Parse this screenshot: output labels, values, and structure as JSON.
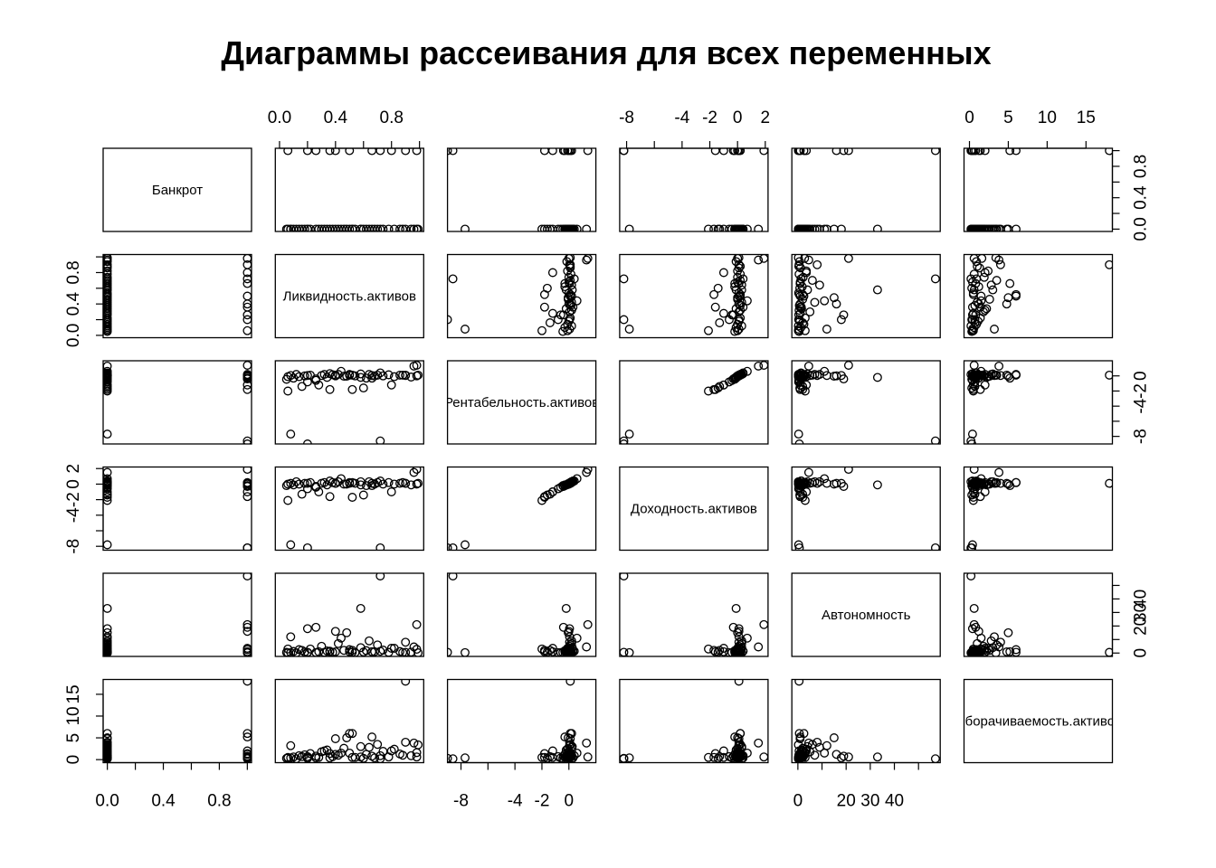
{
  "chart_data": {
    "type": "scatter",
    "title": "Диаграммы рассеивания для всех переменных",
    "variables": [
      {
        "name": "Банкрот",
        "range": [
          -0.03,
          1.03
        ],
        "ticks": [
          0.0,
          0.2,
          0.4,
          0.6,
          0.8,
          1.0
        ],
        "tick_labels": [
          "0.0",
          "",
          "0.4",
          "",
          "0.8",
          ""
        ]
      },
      {
        "name": "Ликвидность.активов",
        "range": [
          -0.03,
          1.03
        ],
        "ticks": [
          0.0,
          0.2,
          0.4,
          0.6,
          0.8,
          1.0
        ],
        "tick_labels": [
          "0.0",
          "",
          "0.4",
          "",
          "0.8",
          ""
        ]
      },
      {
        "name": "Рентабельность.активов",
        "range": [
          -9.0,
          2.0
        ],
        "ticks": [
          -8,
          -6,
          -4,
          -2,
          0
        ],
        "tick_labels": [
          "-8",
          "",
          "-4",
          "-2",
          "0"
        ]
      },
      {
        "name": "Доходность.активов",
        "range": [
          -8.5,
          2.2
        ],
        "ticks": [
          -8,
          -6,
          -4,
          -2,
          0,
          2
        ],
        "tick_labels": [
          "-8",
          "",
          "-4",
          "-2",
          "0",
          "2"
        ]
      },
      {
        "name": "Автономность",
        "range": [
          -2.5,
          59.0
        ],
        "ticks": [
          0,
          10,
          20,
          30,
          40,
          50
        ],
        "tick_labels": [
          "0",
          "",
          "20",
          "30",
          "40",
          ""
        ]
      },
      {
        "name": "Оборачиваемость.активов",
        "range": [
          -0.7,
          18.4
        ],
        "ticks": [
          0,
          5,
          10,
          15
        ],
        "tick_labels": [
          "0",
          "5",
          "10",
          "15"
        ]
      }
    ],
    "observations": [
      [
        0,
        0.05,
        -0.45,
        -0.2,
        0.5,
        0.3
      ],
      [
        0,
        0.1,
        -0.3,
        -0.1,
        1.2,
        0.6
      ],
      [
        0,
        0.14,
        -0.1,
        0.0,
        2.5,
        0.9
      ],
      [
        0,
        0.18,
        0.0,
        0.1,
        0.8,
        1.1
      ],
      [
        0,
        0.22,
        0.1,
        0.2,
        3.0,
        1.4
      ],
      [
        0,
        0.26,
        -0.6,
        -0.4,
        0.4,
        0.4
      ],
      [
        0,
        0.3,
        0.05,
        0.1,
        5.0,
        1.8
      ],
      [
        0,
        0.34,
        -0.2,
        -0.1,
        1.5,
        2.2
      ],
      [
        0,
        0.38,
        0.15,
        0.2,
        0.6,
        0.7
      ],
      [
        0,
        0.42,
        0.2,
        0.3,
        7.0,
        1.0
      ],
      [
        0,
        0.46,
        -0.05,
        0.0,
        2.0,
        2.6
      ],
      [
        0,
        0.5,
        0.1,
        0.1,
        1.0,
        1.5
      ],
      [
        0,
        0.54,
        0.0,
        0.1,
        0.3,
        0.5
      ],
      [
        0,
        0.58,
        0.25,
        0.3,
        4.0,
        3.0
      ],
      [
        0,
        0.62,
        -0.3,
        -0.2,
        1.8,
        1.2
      ],
      [
        0,
        0.66,
        0.05,
        0.1,
        0.9,
        0.8
      ],
      [
        0,
        0.7,
        0.1,
        0.2,
        6.0,
        3.5
      ],
      [
        0,
        0.74,
        0.0,
        0.0,
        2.2,
        1.9
      ],
      [
        0,
        0.78,
        0.15,
        0.2,
        0.5,
        0.6
      ],
      [
        0,
        0.82,
        -0.1,
        0.0,
        3.5,
        2.4
      ],
      [
        0,
        0.86,
        0.1,
        0.1,
        1.1,
        1.3
      ],
      [
        0,
        0.9,
        0.05,
        0.1,
        8.0,
        4.0
      ],
      [
        0,
        0.94,
        -0.15,
        -0.1,
        0.7,
        0.9
      ],
      [
        0,
        0.98,
        0.0,
        0.0,
        2.8,
        1.6
      ],
      [
        0,
        0.12,
        0.2,
        0.3,
        0.2,
        0.2
      ],
      [
        0,
        0.36,
        0.3,
        0.4,
        1.4,
        0.4
      ],
      [
        0,
        0.64,
        0.2,
        0.3,
        9.0,
        2.8
      ],
      [
        0,
        0.88,
        0.1,
        0.2,
        0.4,
        1.0
      ],
      [
        0,
        0.08,
        0.05,
        0.1,
        12.0,
        3.2
      ],
      [
        0,
        0.48,
        -0.05,
        0.0,
        15.0,
        5.0
      ],
      [
        0,
        0.2,
        -0.8,
        -0.6,
        0.3,
        0.7
      ],
      [
        0,
        0.28,
        -1.2,
        -1.0,
        1.0,
        0.5
      ],
      [
        0,
        0.6,
        -1.6,
        -1.4,
        0.8,
        0.3
      ],
      [
        0,
        0.2,
        0.05,
        0.1,
        18.0,
        0.4
      ],
      [
        0,
        0.4,
        0.1,
        0.1,
        0.9,
        4.8
      ],
      [
        0,
        0.52,
        0.1,
        0.2,
        0.6,
        6.0
      ],
      [
        0,
        0.06,
        -2.0,
        -2.1,
        3.0,
        0.5
      ],
      [
        0,
        0.16,
        -1.4,
        -1.3,
        2.0,
        0.7
      ],
      [
        0,
        0.44,
        0.6,
        0.7,
        11.0,
        1.5
      ],
      [
        0,
        0.32,
        0.2,
        0.2,
        0.5,
        2.0
      ],
      [
        0,
        0.68,
        0.0,
        0.0,
        1.0,
        0.4
      ],
      [
        0,
        0.96,
        1.3,
        1.5,
        4.5,
        3.8
      ],
      [
        0,
        0.08,
        -7.7,
        -7.8,
        0.3,
        0.4
      ],
      [
        0,
        0.58,
        -0.2,
        -0.1,
        33.0,
        0.6
      ],
      [
        0,
        0.52,
        -1.8,
        -1.7,
        2.0,
        0.5
      ],
      [
        0,
        0.72,
        0.4,
        0.4,
        1.3,
        0.9
      ],
      [
        0,
        0.99,
        0.1,
        0.1,
        0.2,
        3.4
      ],
      [
        1,
        0.2,
        -9.0,
        -8.2,
        0.6,
        0.3
      ],
      [
        1,
        0.06,
        -0.1,
        0.0,
        0.2,
        0.4
      ],
      [
        1,
        0.72,
        -8.6,
        -8.2,
        57.0,
        0.2
      ],
      [
        1,
        0.98,
        1.4,
        1.9,
        21.0,
        0.6
      ],
      [
        1,
        0.26,
        -0.4,
        -0.3,
        19.0,
        0.8
      ],
      [
        1,
        0.4,
        0.0,
        0.1,
        16.0,
        1.2
      ],
      [
        1,
        0.5,
        0.2,
        0.2,
        2.5,
        6.0
      ],
      [
        1,
        0.66,
        -0.3,
        -0.2,
        1.0,
        5.2
      ],
      [
        1,
        0.8,
        -1.2,
        -1.0,
        3.5,
        2.0
      ],
      [
        1,
        0.9,
        0.1,
        0.1,
        0.5,
        18.0
      ],
      [
        1,
        0.36,
        -1.8,
        -1.6,
        0.9,
        1.4
      ]
    ],
    "grid": false,
    "legend": "none"
  }
}
